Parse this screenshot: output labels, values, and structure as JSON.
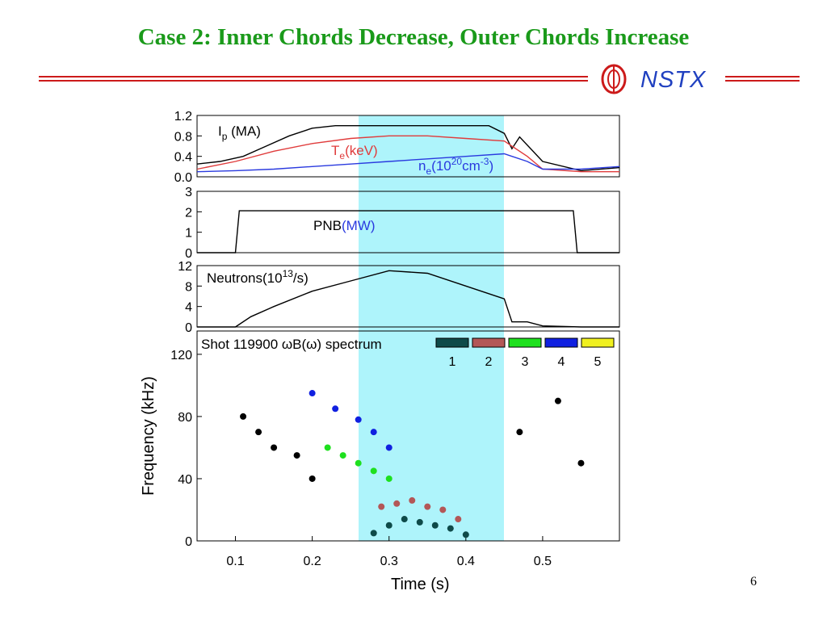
{
  "slide": {
    "title": "Case 2: Inner Chords Decrease, Outer Chords Increase",
    "logo_text": "NSTX",
    "page_number": "6"
  },
  "colors": {
    "title": "#1a9a1a",
    "brand_red": "#cc1a1a",
    "brand_blue": "#2040c0",
    "highlight": "#aef4fb"
  },
  "chart_data": [
    {
      "type": "line",
      "panel": "plasma",
      "xlim": [
        0.05,
        0.6
      ],
      "ylim": [
        0,
        1.2
      ],
      "yticks": [
        "0.0",
        "0.4",
        "0.8",
        "1.2"
      ],
      "highlight_x": [
        0.26,
        0.45
      ],
      "series": [
        {
          "name_main": "I",
          "name_sub": "p",
          "name_tail": " (MA)",
          "color": "#000000",
          "x": [
            0.05,
            0.08,
            0.11,
            0.14,
            0.17,
            0.2,
            0.23,
            0.26,
            0.3,
            0.35,
            0.4,
            0.43,
            0.45,
            0.46,
            0.47,
            0.5,
            0.55,
            0.6
          ],
          "y": [
            0.25,
            0.3,
            0.4,
            0.6,
            0.8,
            0.95,
            1.0,
            1.0,
            1.0,
            1.0,
            1.0,
            1.0,
            0.85,
            0.55,
            0.78,
            0.3,
            0.12,
            0.18
          ]
        },
        {
          "name_main": "T",
          "name_sub": "e",
          "name_tail": "(keV)",
          "color": "#e03c3c",
          "x": [
            0.05,
            0.1,
            0.15,
            0.2,
            0.25,
            0.3,
            0.35,
            0.4,
            0.45,
            0.48,
            0.5,
            0.55,
            0.6
          ],
          "y": [
            0.15,
            0.3,
            0.5,
            0.65,
            0.75,
            0.8,
            0.8,
            0.75,
            0.7,
            0.4,
            0.15,
            0.1,
            0.1
          ]
        },
        {
          "name_main": "n",
          "name_sub": "e",
          "name_tail": "(10",
          "name_sup": "20",
          "name_tail2": "cm",
          "name_sup2": "-3",
          "name_tail3": ")",
          "color": "#2a3adf",
          "x": [
            0.05,
            0.1,
            0.15,
            0.2,
            0.25,
            0.3,
            0.35,
            0.4,
            0.45,
            0.48,
            0.5,
            0.55,
            0.6
          ],
          "y": [
            0.1,
            0.12,
            0.15,
            0.2,
            0.25,
            0.3,
            0.35,
            0.4,
            0.45,
            0.3,
            0.15,
            0.15,
            0.2
          ]
        }
      ]
    },
    {
      "type": "line",
      "panel": "pnb",
      "xlim": [
        0.05,
        0.6
      ],
      "ylim": [
        0,
        3
      ],
      "yticks": [
        "0",
        "1",
        "2",
        "3"
      ],
      "series": [
        {
          "name": "PNB",
          "unit_label": "(MW)",
          "color": "#000000",
          "x": [
            0.05,
            0.1,
            0.105,
            0.54,
            0.545,
            0.6
          ],
          "y": [
            0,
            0,
            2.05,
            2.05,
            0,
            0
          ]
        }
      ]
    },
    {
      "type": "line",
      "panel": "neutrons",
      "xlim": [
        0.05,
        0.6
      ],
      "ylim": [
        0,
        12
      ],
      "yticks": [
        "0",
        "4",
        "8",
        "12"
      ],
      "series": [
        {
          "name_main": "Neutrons(10",
          "name_sup": "13",
          "name_tail": "/s)",
          "color": "#000000",
          "x": [
            0.05,
            0.1,
            0.12,
            0.15,
            0.2,
            0.25,
            0.3,
            0.35,
            0.4,
            0.45,
            0.46,
            0.48,
            0.5,
            0.55,
            0.6
          ],
          "y": [
            0,
            0,
            2,
            4,
            7,
            9,
            11,
            10.5,
            8,
            5.5,
            1,
            1,
            0.2,
            0,
            0
          ]
        }
      ]
    },
    {
      "type": "scatter",
      "panel": "spectrum",
      "annotation": "Shot 119900 ωB(ω) spectrum",
      "xlabel": "Time (s)",
      "ylabel": "Frequency (kHz)",
      "xlim": [
        0.05,
        0.6
      ],
      "ylim": [
        0,
        135
      ],
      "xticks": [
        "0.1",
        "0.2",
        "0.3",
        "0.4",
        "0.5"
      ],
      "yticks": [
        "0",
        "40",
        "80",
        "120"
      ],
      "legend": [
        {
          "label": "1",
          "color": "#0e4a49"
        },
        {
          "label": "2",
          "color": "#b35757"
        },
        {
          "label": "3",
          "color": "#1ee01e"
        },
        {
          "label": "4",
          "color": "#1020e0"
        },
        {
          "label": "5",
          "color": "#f0f020"
        }
      ],
      "series": [
        {
          "name": "1",
          "color": "#0e4a49",
          "x": [
            0.28,
            0.3,
            0.32,
            0.34,
            0.36,
            0.38,
            0.4
          ],
          "y": [
            5,
            10,
            14,
            12,
            10,
            8,
            4
          ]
        },
        {
          "name": "2",
          "color": "#b35757",
          "x": [
            0.29,
            0.31,
            0.33,
            0.35,
            0.37,
            0.39
          ],
          "y": [
            22,
            24,
            26,
            22,
            20,
            14
          ]
        },
        {
          "name": "3",
          "color": "#1ee01e",
          "x": [
            0.22,
            0.24,
            0.26,
            0.28,
            0.3
          ],
          "y": [
            60,
            55,
            50,
            45,
            40
          ]
        },
        {
          "name": "4",
          "color": "#1020e0",
          "x": [
            0.2,
            0.23,
            0.26,
            0.28,
            0.3
          ],
          "y": [
            95,
            85,
            78,
            70,
            60
          ]
        },
        {
          "name": "black",
          "color": "#000000",
          "x": [
            0.11,
            0.13,
            0.15,
            0.18,
            0.2,
            0.47,
            0.52,
            0.55
          ],
          "y": [
            80,
            70,
            60,
            55,
            40,
            70,
            90,
            50
          ]
        }
      ]
    }
  ]
}
